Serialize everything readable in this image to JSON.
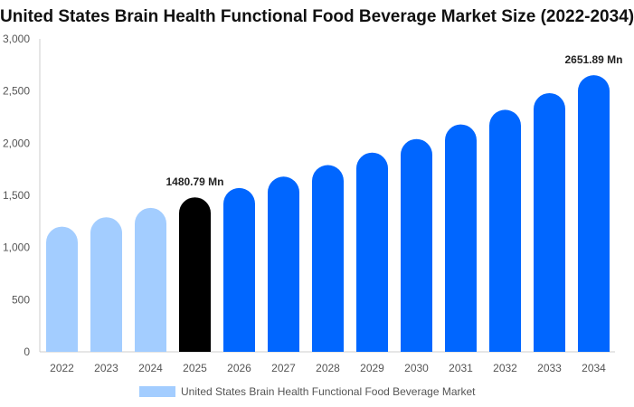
{
  "chart_data": {
    "type": "bar",
    "title": "United States Brain Health Functional Food Beverage Market Size (2022-2034)",
    "categories": [
      "2022",
      "2023",
      "2024",
      "2025",
      "2026",
      "2027",
      "2028",
      "2029",
      "2030",
      "2031",
      "2032",
      "2033",
      "2034"
    ],
    "series": [
      {
        "name": "United States Brain Health Functional Food Beverage Market",
        "values": [
          1200,
          1290,
          1380,
          1480.79,
          1570,
          1680,
          1790,
          1910,
          2040,
          2180,
          2320,
          2480,
          2651.89
        ]
      }
    ],
    "data_labels": [
      {
        "index": 3,
        "text": "1480.79 Mn"
      },
      {
        "index": 12,
        "text": "2651.89 Mn"
      }
    ],
    "ylim": [
      0,
      3000
    ],
    "yticks": [
      0,
      500,
      1000,
      1500,
      2000,
      2500,
      3000
    ],
    "ytick_labels": [
      "0",
      "500",
      "1,000",
      "1,500",
      "2,000",
      "2,500",
      "3,000"
    ],
    "xlabel": "",
    "ylabel": "",
    "grid": false,
    "legend_position": "bottom",
    "colors": {
      "historical": "#a3cdff",
      "base_year": "#000000",
      "forecast": "#0066ff",
      "axis": "#cccccc"
    }
  }
}
